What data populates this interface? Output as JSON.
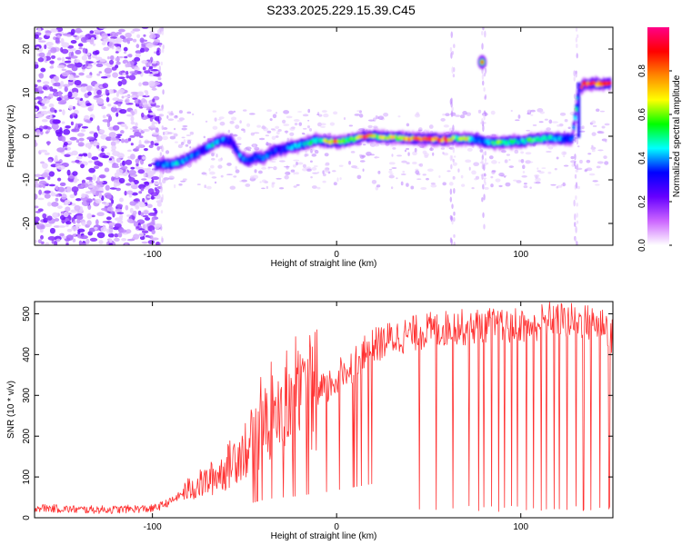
{
  "title": "S233.2025.229.15.39.C45",
  "chart_data": [
    {
      "type": "heatmap",
      "xlabel": "Height of straight line (km)",
      "ylabel": "Frequency (Hz)",
      "xlim": [
        -164,
        150
      ],
      "ylim": [
        -25,
        25
      ],
      "xticks": [
        -100,
        0,
        100
      ],
      "yticks": [
        -20,
        -10,
        0,
        10,
        20
      ],
      "colorbar": {
        "label": "Normalized spectral amplitude",
        "range": [
          0,
          1
        ],
        "ticks": [
          0.0,
          0.2,
          0.4,
          0.6,
          0.8
        ],
        "colors": [
          "#ffffff",
          "#cc66ff",
          "#6600ff",
          "#0000ff",
          "#00ffff",
          "#00ff00",
          "#ffff00",
          "#ff8800",
          "#ff0000",
          "#ff0088"
        ]
      },
      "ridge": {
        "x": [
          -98,
          -92,
          -85,
          -78,
          -72,
          -66,
          -62,
          -57,
          -52,
          -48,
          -44,
          -40,
          -35,
          -30,
          -25,
          -20,
          -15,
          -10,
          -5,
          0,
          5,
          10,
          15,
          20,
          25,
          30,
          35,
          40,
          45,
          50,
          55,
          60,
          65,
          70,
          75,
          80,
          85,
          90,
          95,
          100,
          105,
          110,
          115,
          120,
          125,
          128,
          131,
          134,
          138,
          142,
          146,
          149
        ],
        "y": [
          -6.5,
          -6.5,
          -6,
          -4.5,
          -3,
          -1.5,
          -0.8,
          -1.2,
          -5,
          -5.5,
          -4.8,
          -5,
          -3.5,
          -3,
          -2.5,
          -2,
          -1.5,
          -0.8,
          -1.2,
          -1.3,
          -1,
          -0.5,
          0,
          0,
          -0.2,
          -0.3,
          -0.4,
          -0.5,
          -0.6,
          -0.6,
          -0.7,
          -0.7,
          -0.5,
          -0.6,
          -0.7,
          -1.2,
          -1.4,
          -1.5,
          -1.3,
          -1.2,
          -0.8,
          -0.6,
          -0.4,
          -0.5,
          -0.6,
          -0.5,
          9,
          12,
          12,
          12,
          12,
          12
        ],
        "amplitude": [
          0.35,
          0.4,
          0.45,
          0.4,
          0.35,
          0.5,
          0.4,
          0.3,
          0.4,
          0.35,
          0.35,
          0.4,
          0.35,
          0.35,
          0.4,
          0.45,
          0.55,
          0.45,
          0.7,
          0.8,
          0.6,
          0.55,
          0.9,
          0.7,
          0.65,
          0.7,
          0.75,
          0.8,
          0.85,
          0.88,
          0.9,
          0.9,
          0.5,
          0.75,
          0.4,
          0.35,
          0.55,
          0.6,
          0.5,
          0.45,
          0.6,
          0.5,
          0.5,
          0.45,
          0.4,
          0.4,
          0.5,
          0.95,
          0.9,
          0.9,
          0.9,
          0.85
        ]
      },
      "blobs": [
        {
          "x": 79,
          "y": 17,
          "amplitude": 0.9
        }
      ]
    },
    {
      "type": "line",
      "xlabel": "Height of straight line (km)",
      "ylabel": "SNR (10 * v/v)",
      "xlim": [
        -164,
        150
      ],
      "ylim": [
        0,
        530
      ],
      "xticks": [
        -100,
        0,
        100
      ],
      "yticks": [
        0,
        100,
        200,
        300,
        400,
        500
      ],
      "series": [
        {
          "name": "SNR",
          "color": "#ff3030",
          "x": [
            -164,
            -150,
            -140,
            -130,
            -120,
            -110,
            -100,
            -95,
            -90,
            -85,
            -80,
            -75,
            -70,
            -65,
            -60,
            -55,
            -50,
            -45,
            -40,
            -35,
            -30,
            -25,
            -20,
            -15,
            -10,
            -5,
            0,
            5,
            10,
            15,
            20,
            25,
            30,
            35,
            40,
            45,
            50,
            55,
            60,
            65,
            70,
            75,
            80,
            85,
            90,
            95,
            100,
            105,
            110,
            115,
            120,
            125,
            130,
            135,
            140,
            145,
            150
          ],
          "y": [
            25,
            22,
            20,
            20,
            20,
            22,
            22,
            30,
            40,
            55,
            70,
            80,
            90,
            105,
            120,
            150,
            170,
            190,
            220,
            240,
            250,
            260,
            270,
            290,
            300,
            320,
            340,
            360,
            380,
            400,
            420,
            430,
            440,
            445,
            450,
            455,
            460,
            460,
            465,
            470,
            465,
            470,
            475,
            470,
            465,
            470,
            475,
            470,
            480,
            485,
            490,
            480,
            485,
            480,
            475,
            480,
            440
          ],
          "dropouts": [
            45,
            54,
            63,
            72,
            77,
            80,
            84,
            88,
            91,
            95,
            98,
            103,
            107,
            111,
            114,
            118,
            121,
            125,
            130,
            134,
            138,
            143,
            148
          ]
        }
      ]
    }
  ]
}
